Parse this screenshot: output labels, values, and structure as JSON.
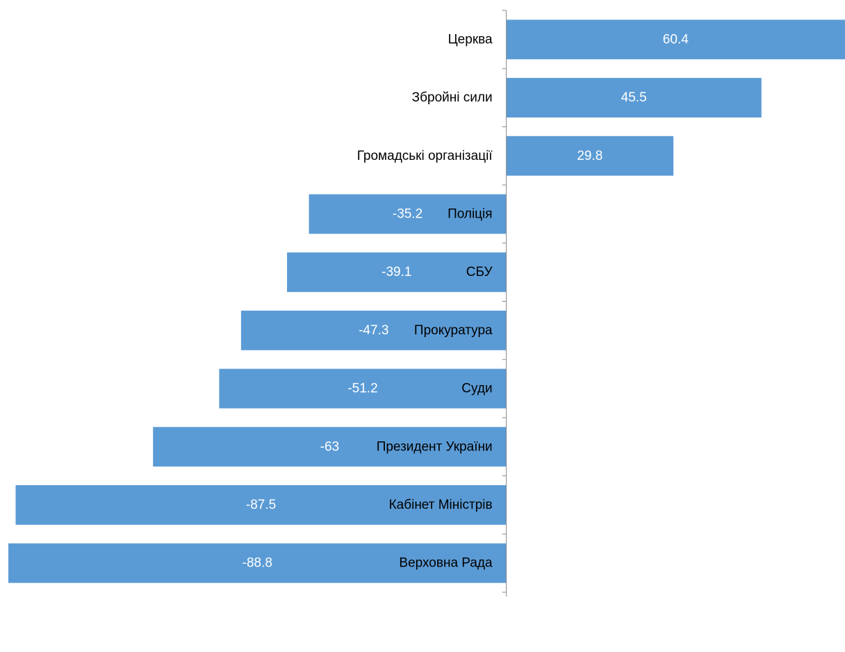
{
  "chart_data": {
    "type": "bar",
    "orientation": "horizontal",
    "categories": [
      "Церква",
      "Збройні сили",
      "Громадські організації",
      "Поліція",
      "СБУ",
      "Прокуратура",
      "Суди",
      "Президент України",
      "Кабінет Міністрів",
      "Верховна Рада"
    ],
    "values": [
      60.4,
      45.5,
      29.8,
      -35.2,
      -39.1,
      -47.3,
      -51.2,
      -63,
      -87.5,
      -88.8
    ],
    "value_labels": [
      "60.4",
      "45.5",
      "29.8",
      "-35.2",
      "-39.1",
      "-47.3",
      "-51.2",
      "-63",
      "-87.5",
      "-88.8"
    ],
    "xlim": [
      -88.8,
      60.4
    ],
    "bar_color": "#5b9bd5",
    "axis_color": "#888888",
    "grid": false,
    "legend": false
  }
}
